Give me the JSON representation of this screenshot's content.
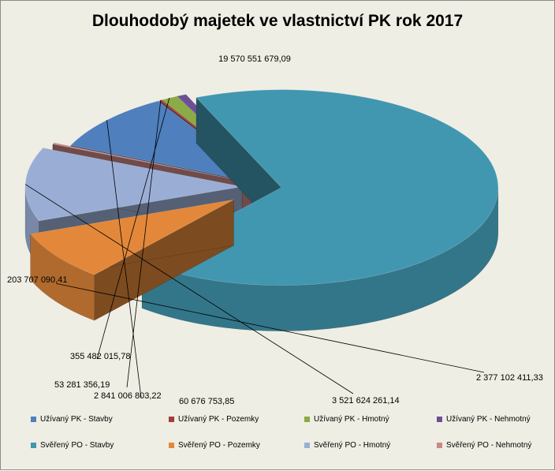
{
  "chart_data": {
    "type": "pie",
    "title": "Dlouhodobý majetek ve vlastnictví PK rok 2017",
    "series": [
      {
        "name": "Užívaný PK - Stavby",
        "value": 2841006803.22,
        "label": "2 841 006 803,22",
        "color": "#4f7fbd"
      },
      {
        "name": "Užívaný PK - Pozemky",
        "value": 53281356.19,
        "label": "53 281 356,19",
        "color": "#a33c3a"
      },
      {
        "name": "Užívaný PK - Hmotný",
        "value": 355482015.78,
        "label": "355 482 015,78",
        "color": "#8aab45"
      },
      {
        "name": "Užívaný PK - Nehmotný",
        "value": 203707090.41,
        "label": "203 707 090,41",
        "color": "#6c4f96"
      },
      {
        "name": "Svěřený PO - Stavby",
        "value": 19570551679.09,
        "label": "19 570 551 679,09",
        "color": "#4197b0"
      },
      {
        "name": "Svěřený PO - Pozemky",
        "value": 2377102411.33,
        "label": "2 377 102 411,33",
        "color": "#e3883a"
      },
      {
        "name": "Svěřený PO - Hmotný",
        "value": 3521624261.14,
        "label": "3 521 624 261,14",
        "color": "#9aaed5"
      },
      {
        "name": "Svěřený PO - Nehmotný",
        "value": 60676753.85,
        "label": "60 676 753,85",
        "color": "#c98886"
      }
    ],
    "style": "3d-exploded",
    "legend_position": "bottom"
  }
}
